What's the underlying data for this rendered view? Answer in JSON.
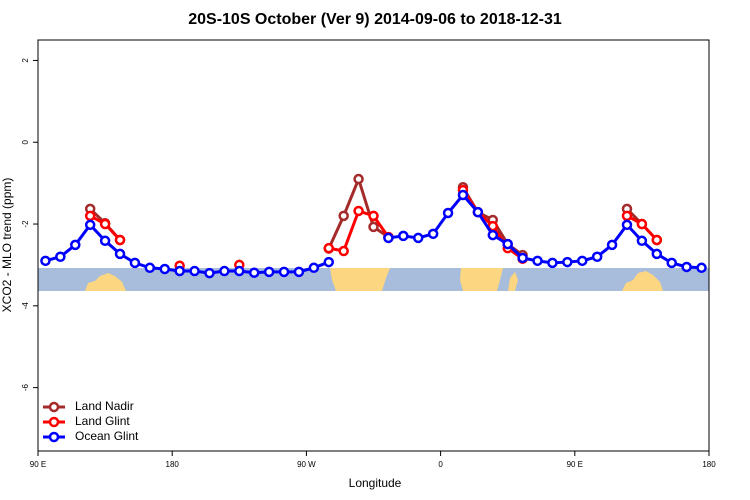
{
  "chart_data": {
    "type": "line",
    "title": "20S-10S October (Ver 9)   2014-09-06 to 2018-12-31",
    "x_label": "Longitude",
    "y_label": "XCO2 - MLO trend (ppm)",
    "x": [
      95,
      105,
      115,
      125,
      135,
      145,
      155,
      165,
      175,
      185,
      195,
      205,
      215,
      225,
      235,
      245,
      255,
      265,
      275,
      285,
      295,
      305,
      315,
      325,
      335,
      345,
      355,
      365,
      375,
      385,
      395,
      405,
      415,
      425,
      435,
      445,
      455,
      465,
      475,
      485,
      495,
      505,
      515,
      525,
      535
    ],
    "series": [
      {
        "name": "Land Nadir",
        "color": "#a52a2a",
        "values": [
          null,
          null,
          null,
          -1.63,
          -1.98,
          -2.39,
          null,
          null,
          null,
          null,
          null,
          null,
          null,
          null,
          null,
          null,
          null,
          null,
          null,
          -2.6,
          -1.8,
          -0.9,
          -2.07,
          -2.32,
          null,
          null,
          null,
          null,
          -1.1,
          -1.71,
          -1.9,
          -2.49,
          -2.76,
          null,
          null,
          null,
          null,
          null,
          null,
          -1.63,
          -2.0,
          -2.39,
          null,
          null,
          null
        ]
      },
      {
        "name": "Land Glint",
        "color": "#ff0000",
        "values": [
          null,
          null,
          null,
          -1.8,
          -2.0,
          -2.39,
          null,
          null,
          null,
          -3.02,
          null,
          null,
          null,
          -3.0,
          null,
          null,
          null,
          null,
          null,
          -2.59,
          -2.66,
          -1.68,
          -1.8,
          -2.32,
          null,
          null,
          null,
          null,
          -1.17,
          -1.71,
          -2.05,
          -2.59,
          -2.85,
          null,
          null,
          null,
          null,
          null,
          null,
          -1.8,
          -2.0,
          -2.39,
          null,
          null,
          null
        ]
      },
      {
        "name": "Ocean Glint",
        "color": "#0000ff",
        "values": [
          -2.9,
          -2.8,
          -2.51,
          -2.02,
          -2.41,
          -2.73,
          -2.95,
          -3.07,
          -3.1,
          -3.15,
          -3.15,
          -3.2,
          -3.15,
          -3.15,
          -3.19,
          -3.17,
          -3.17,
          -3.17,
          -3.07,
          -2.93,
          null,
          null,
          null,
          -2.34,
          -2.29,
          -2.34,
          -2.24,
          -1.73,
          -1.29,
          -1.71,
          -2.27,
          -2.49,
          -2.83,
          -2.9,
          -2.95,
          -2.93,
          -2.9,
          -2.8,
          -2.51,
          -2.02,
          -2.41,
          -2.73,
          -2.95,
          -3.05,
          -3.07
        ]
      }
    ],
    "xlim": [
      90,
      540
    ],
    "xticks": [
      {
        "value": 90,
        "label": "90 E"
      },
      180,
      {
        "value": 270,
        "label": "90 W"
      },
      {
        "value": 360,
        "label": "0"
      },
      {
        "value": 450,
        "label": "90 E"
      },
      180
    ],
    "ylim": [
      -7.55,
      2.5
    ],
    "yticks": [
      2,
      0,
      -2,
      -4,
      -6
    ],
    "grid": false,
    "legend": "bottom-left"
  }
}
